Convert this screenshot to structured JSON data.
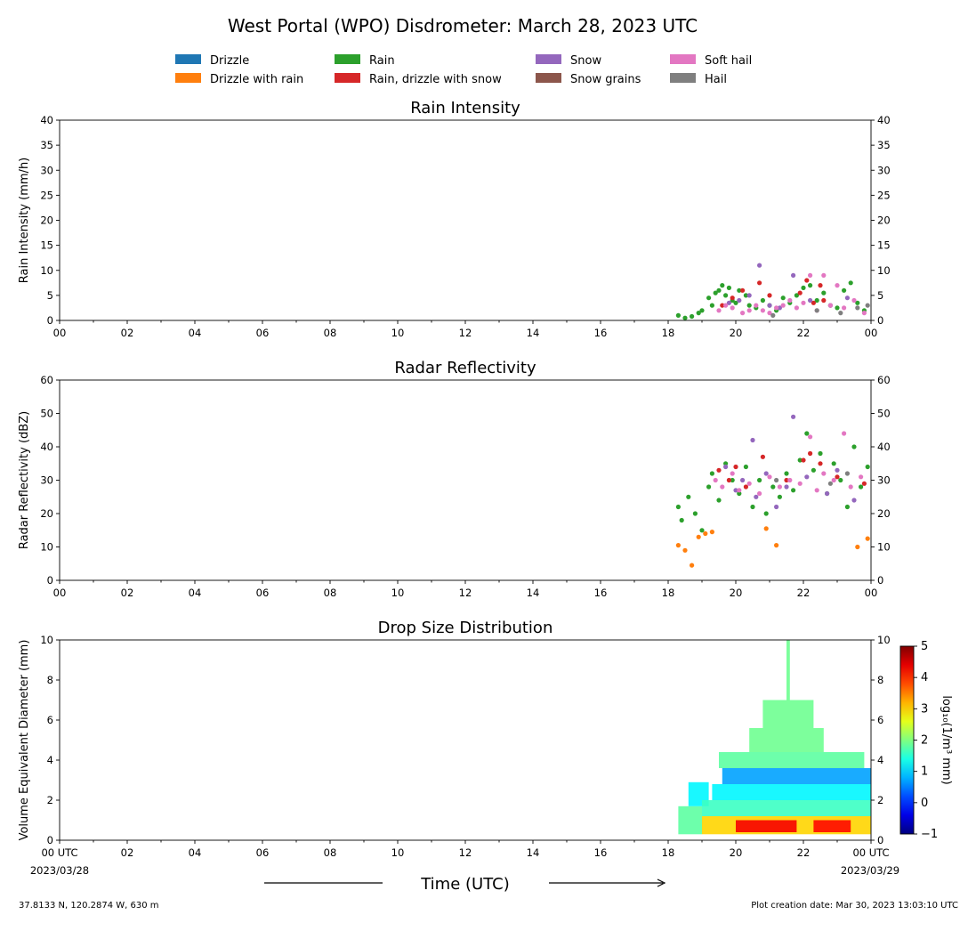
{
  "title": "West Portal (WPO) Disdrometer: March 28, 2023 UTC",
  "legend": [
    {
      "label": "Drizzle",
      "color": "#1f77b4"
    },
    {
      "label": "Drizzle with rain",
      "color": "#ff7f0e"
    },
    {
      "label": "Rain",
      "color": "#2ca02c"
    },
    {
      "label": "Rain, drizzle with snow",
      "color": "#d62728"
    },
    {
      "label": "Snow",
      "color": "#9467bd"
    },
    {
      "label": "Snow grains",
      "color": "#8c564b"
    },
    {
      "label": "Soft hail",
      "color": "#e377c2"
    },
    {
      "label": "Hail",
      "color": "#7f7f7f"
    }
  ],
  "x_ticks": [
    "00",
    "02",
    "04",
    "06",
    "08",
    "10",
    "12",
    "14",
    "16",
    "18",
    "20",
    "22",
    "00"
  ],
  "x_ticks_bottom": [
    "00 UTC",
    "02",
    "04",
    "06",
    "08",
    "10",
    "12",
    "14",
    "16",
    "18",
    "20",
    "22",
    "00 UTC"
  ],
  "x_start_date": "2023/03/28",
  "x_end_date": "2023/03/29",
  "xlabel": "Time (UTC)",
  "footer_left": "37.8133 N, 120.2874 W, 630 m",
  "footer_right": "Plot creation date: Mar 30, 2023 13:03:10 UTC",
  "chart_data": [
    {
      "type": "scatter",
      "title": "Rain Intensity",
      "ylabel": "Rain Intensity (mm/h)",
      "xlim": [
        0,
        24
      ],
      "ylim": [
        0,
        40
      ],
      "yticks": [
        0,
        5,
        10,
        15,
        20,
        25,
        30,
        35,
        40
      ],
      "series": [
        {
          "name": "Rain",
          "color": "#2ca02c",
          "x": [
            18.3,
            18.5,
            18.7,
            18.9,
            19.0,
            19.2,
            19.3,
            19.4,
            19.5,
            19.6,
            19.7,
            19.8,
            19.9,
            20.0,
            20.1,
            20.3,
            20.4,
            20.6,
            20.8,
            21.0,
            21.2,
            21.4,
            21.6,
            21.8,
            22.0,
            22.2,
            22.4,
            22.6,
            22.8,
            23.0,
            23.2,
            23.4,
            23.6,
            23.8
          ],
          "y": [
            1.0,
            0.5,
            0.8,
            1.5,
            2.0,
            4.5,
            3.0,
            5.5,
            6.0,
            7.0,
            5.0,
            6.5,
            4.0,
            3.5,
            6.0,
            5.0,
            3.0,
            2.5,
            4.0,
            3.0,
            2.0,
            4.5,
            3.5,
            5.0,
            6.5,
            7.0,
            4.0,
            5.5,
            3.0,
            2.5,
            6.0,
            7.5,
            3.5,
            2.0
          ]
        },
        {
          "name": "Rain, drizzle with snow",
          "color": "#d62728",
          "x": [
            19.6,
            19.9,
            20.2,
            20.7,
            21.0,
            21.9,
            22.1,
            22.3,
            22.5,
            22.6
          ],
          "y": [
            3.0,
            4.5,
            6.0,
            7.5,
            5.0,
            5.5,
            8.0,
            3.5,
            7.0,
            4.0
          ]
        },
        {
          "name": "Snow",
          "color": "#9467bd",
          "x": [
            19.8,
            20.1,
            20.4,
            20.7,
            21.0,
            21.3,
            21.7,
            22.2,
            22.8,
            23.3
          ],
          "y": [
            3.5,
            4.0,
            5.0,
            11.0,
            3.0,
            2.5,
            9.0,
            4.0,
            3.0,
            4.5
          ]
        },
        {
          "name": "Soft hail",
          "color": "#e377c2",
          "x": [
            19.5,
            19.7,
            19.9,
            20.2,
            20.4,
            20.6,
            20.8,
            21.0,
            21.2,
            21.4,
            21.6,
            21.8,
            22.0,
            22.2,
            22.4,
            22.6,
            22.8,
            23.0,
            23.2,
            23.5,
            23.8
          ],
          "y": [
            2.0,
            3.0,
            2.5,
            1.5,
            2.0,
            3.0,
            2.0,
            1.5,
            2.5,
            3.0,
            4.0,
            2.5,
            3.5,
            9.0,
            2.0,
            9.0,
            3.0,
            7.0,
            2.5,
            4.0,
            1.5
          ]
        },
        {
          "name": "Hail",
          "color": "#7f7f7f",
          "x": [
            21.1,
            22.4,
            23.1,
            23.6,
            23.9
          ],
          "y": [
            1.0,
            2.0,
            1.5,
            2.5,
            3.0
          ]
        }
      ]
    },
    {
      "type": "scatter",
      "title": "Radar Reflectivity",
      "ylabel": "Radar Reflectivity (dBZ)",
      "xlim": [
        0,
        24
      ],
      "ylim": [
        0,
        60
      ],
      "yticks": [
        0,
        10,
        20,
        30,
        40,
        50,
        60
      ],
      "series": [
        {
          "name": "Drizzle with rain",
          "color": "#ff7f0e",
          "x": [
            18.3,
            18.5,
            18.7,
            18.9,
            19.1,
            19.3,
            20.9,
            21.2,
            23.6,
            23.9
          ],
          "y": [
            10.5,
            9.0,
            4.5,
            13.0,
            14.0,
            14.5,
            15.5,
            10.5,
            10.0,
            12.5
          ]
        },
        {
          "name": "Rain",
          "color": "#2ca02c",
          "x": [
            18.3,
            18.4,
            18.6,
            18.8,
            19.0,
            19.2,
            19.3,
            19.5,
            19.7,
            19.9,
            20.1,
            20.3,
            20.5,
            20.7,
            20.9,
            21.1,
            21.3,
            21.5,
            21.7,
            21.9,
            22.1,
            22.3,
            22.5,
            22.7,
            22.9,
            23.1,
            23.3,
            23.5,
            23.7,
            23.9
          ],
          "y": [
            22.0,
            18.0,
            25.0,
            20.0,
            15.0,
            28.0,
            32.0,
            24.0,
            35.0,
            30.0,
            26.0,
            34.0,
            22.0,
            30.0,
            20.0,
            28.0,
            25.0,
            32.0,
            27.0,
            36.0,
            44.0,
            33.0,
            38.0,
            26.0,
            35.0,
            30.0,
            22.0,
            40.0,
            28.0,
            34.0
          ]
        },
        {
          "name": "Rain, drizzle with snow",
          "color": "#d62728",
          "x": [
            19.5,
            19.8,
            20.0,
            20.3,
            20.8,
            21.5,
            22.0,
            22.2,
            22.5,
            23.0,
            23.8
          ],
          "y": [
            33.0,
            30.0,
            34.0,
            28.0,
            37.0,
            30.0,
            36.0,
            38.0,
            35.0,
            31.0,
            29.0
          ]
        },
        {
          "name": "Snow",
          "color": "#9467bd",
          "x": [
            19.7,
            20.0,
            20.2,
            20.5,
            20.6,
            20.9,
            21.2,
            21.5,
            21.7,
            22.1,
            22.7,
            23.0,
            23.5
          ],
          "y": [
            34.0,
            27.0,
            30.0,
            42.0,
            25.0,
            32.0,
            22.0,
            28.0,
            49.0,
            31.0,
            26.0,
            33.0,
            24.0
          ]
        },
        {
          "name": "Soft hail",
          "color": "#e377c2",
          "x": [
            19.4,
            19.6,
            19.9,
            20.1,
            20.4,
            20.7,
            21.0,
            21.3,
            21.6,
            21.9,
            22.2,
            22.4,
            22.6,
            22.9,
            23.2,
            23.4,
            23.7
          ],
          "y": [
            30.0,
            28.0,
            32.0,
            27.0,
            29.0,
            26.0,
            31.0,
            28.0,
            30.0,
            29.0,
            43.0,
            27.0,
            32.0,
            30.0,
            44.0,
            28.0,
            31.0
          ]
        },
        {
          "name": "Hail",
          "color": "#7f7f7f",
          "x": [
            21.2,
            22.8,
            23.3
          ],
          "y": [
            30.0,
            29.0,
            32.0
          ]
        }
      ]
    },
    {
      "type": "heatmap",
      "title": "Drop Size Distribution",
      "ylabel": "Volume Equivalent Diameter (mm)",
      "xlim": [
        0,
        24
      ],
      "ylim": [
        0,
        10
      ],
      "yticks": [
        0,
        2,
        4,
        6,
        8,
        10
      ],
      "colorbar": {
        "label": "log₁₀(1/m³ mm)",
        "ticks": [
          -1,
          0,
          1,
          2,
          3,
          4,
          5
        ],
        "range": [
          -1,
          5
        ],
        "colormap": "jet"
      },
      "cells": [
        {
          "t": [
            18.3,
            19.0
          ],
          "d": [
            0.3,
            1.7
          ],
          "v": 1.8
        },
        {
          "t": [
            18.6,
            19.2
          ],
          "d": [
            1.7,
            2.9
          ],
          "v": 1.2
        },
        {
          "t": [
            19.0,
            24.0
          ],
          "d": [
            0.3,
            1.2
          ],
          "v": 3.0
        },
        {
          "t": [
            19.0,
            24.0
          ],
          "d": [
            1.2,
            2.0
          ],
          "v": 1.6
        },
        {
          "t": [
            19.3,
            24.0
          ],
          "d": [
            2.0,
            2.8
          ],
          "v": 1.2
        },
        {
          "t": [
            19.6,
            24.0
          ],
          "d": [
            2.8,
            3.6
          ],
          "v": 0.7
        },
        {
          "t": [
            19.5,
            23.8
          ],
          "d": [
            3.6,
            4.4
          ],
          "v": 1.8
        },
        {
          "t": [
            20.0,
            21.8
          ],
          "d": [
            0.4,
            1.0
          ],
          "v": 4.3
        },
        {
          "t": [
            22.3,
            23.4
          ],
          "d": [
            0.4,
            1.0
          ],
          "v": 4.2
        },
        {
          "t": [
            20.4,
            22.6
          ],
          "d": [
            4.4,
            5.6
          ],
          "v": 1.9
        },
        {
          "t": [
            20.8,
            22.3
          ],
          "d": [
            5.6,
            7.0
          ],
          "v": 1.9
        },
        {
          "t": [
            21.5,
            21.6
          ],
          "d": [
            7.0,
            10.0
          ],
          "v": 1.9
        }
      ]
    }
  ]
}
